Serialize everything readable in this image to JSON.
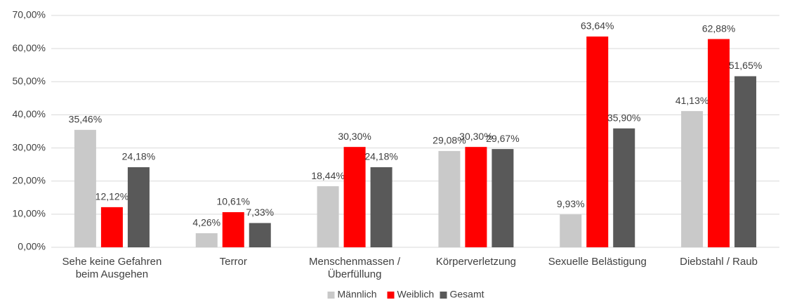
{
  "chart_data": {
    "type": "bar",
    "categories": [
      "Sehe keine Gefahren beim Ausgehen",
      "Terror",
      "Menschenmassen / Überfüllung",
      "Körperverletzung",
      "Sexuelle Belästigung",
      "Diebstahl / Raub"
    ],
    "series": [
      {
        "name": "Männlich",
        "color": "#c9c9c9",
        "values": [
          35.46,
          4.26,
          18.44,
          29.08,
          9.93,
          41.13
        ],
        "value_labels": [
          "35,46%",
          "4,26%",
          "18,44%",
          "29,08%",
          "9,93%",
          "41,13%"
        ]
      },
      {
        "name": "Weiblich",
        "color": "#ff0000",
        "values": [
          12.12,
          10.61,
          30.3,
          30.3,
          63.64,
          62.88
        ],
        "value_labels": [
          "12,12%",
          "10,61%",
          "30,30%",
          "30,30%",
          "63,64%",
          "62,88%"
        ]
      },
      {
        "name": "Gesamt",
        "color": "#595959",
        "values": [
          24.18,
          7.33,
          24.18,
          29.67,
          35.9,
          51.65
        ],
        "value_labels": [
          "24,18%",
          "7,33%",
          "24,18%",
          "29,67%",
          "35,90%",
          "51,65%"
        ]
      }
    ],
    "ylim": [
      0,
      70
    ],
    "yticks": [
      {
        "value": 0,
        "label": "0,00%"
      },
      {
        "value": 10,
        "label": "10,00%"
      },
      {
        "value": 20,
        "label": "20,00%"
      },
      {
        "value": 30,
        "label": "30,00%"
      },
      {
        "value": 40,
        "label": "40,00%"
      },
      {
        "value": 50,
        "label": "50,00%"
      },
      {
        "value": 60,
        "label": "60,00%"
      },
      {
        "value": 70,
        "label": "70,00%"
      }
    ],
    "grid": true,
    "legend": "bottom"
  }
}
